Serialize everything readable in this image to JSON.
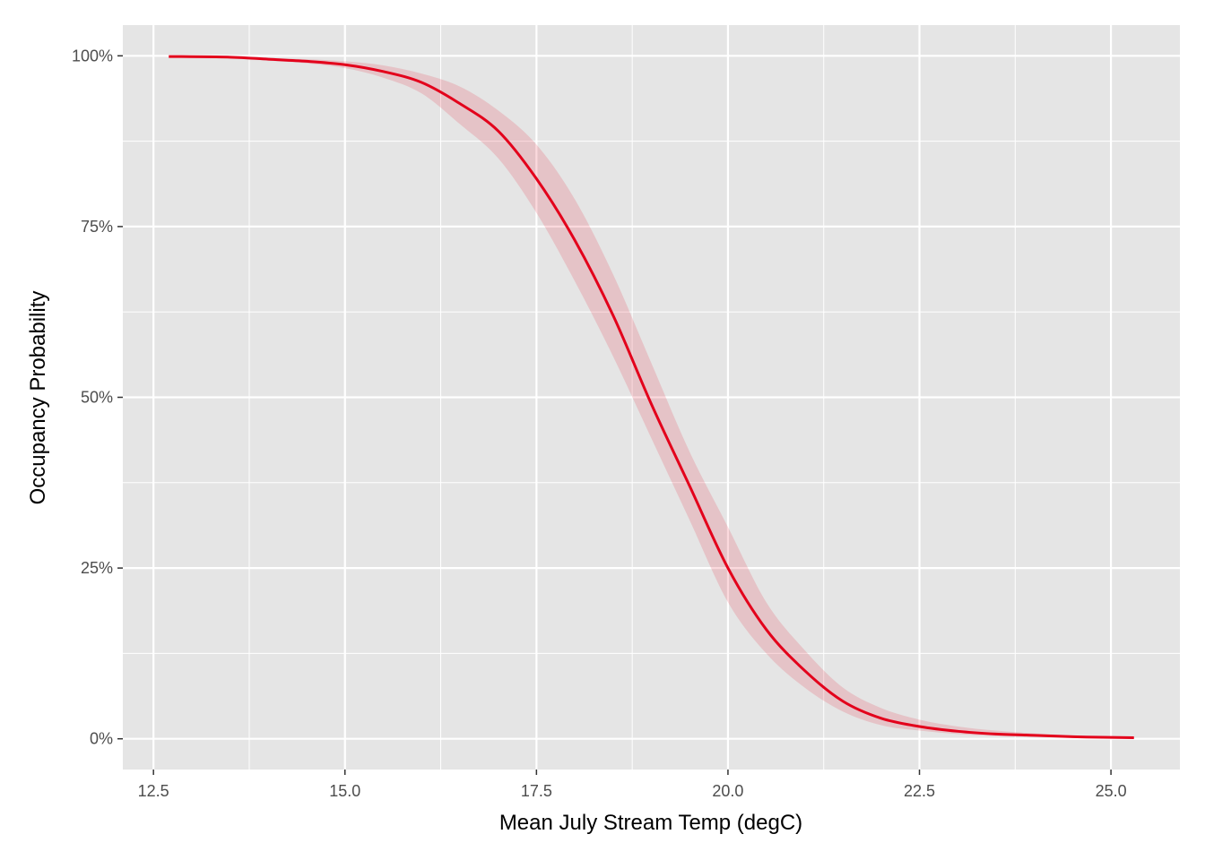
{
  "chart_data": {
    "type": "line",
    "title": "",
    "xlabel": "Mean July Stream Temp (degC)",
    "ylabel": "Occupancy Probability",
    "xlim": [
      12.1,
      25.9
    ],
    "ylim": [
      -0.045,
      1.045
    ],
    "x_ticks": [
      12.5,
      15.0,
      17.5,
      20.0,
      22.5,
      25.0
    ],
    "x_tick_labels": [
      "12.5",
      "15.0",
      "17.5",
      "20.0",
      "22.5",
      "25.0"
    ],
    "y_ticks": [
      0,
      0.25,
      0.5,
      0.75,
      1.0
    ],
    "y_tick_labels": [
      "0%",
      "25%",
      "50%",
      "75%",
      "100%"
    ],
    "grid": true,
    "series": [
      {
        "x": [
          12.7,
          13.5,
          14.0,
          14.5,
          15.0,
          15.5,
          16.0,
          16.5,
          17.0,
          17.5,
          18.0,
          18.5,
          19.0,
          19.5,
          20.0,
          20.5,
          21.0,
          21.5,
          22.0,
          22.5,
          23.0,
          23.5,
          24.0,
          24.5,
          25.0,
          25.3
        ],
        "y": [
          0.999,
          0.998,
          0.995,
          0.992,
          0.987,
          0.977,
          0.961,
          0.93,
          0.89,
          0.82,
          0.73,
          0.62,
          0.49,
          0.37,
          0.25,
          0.16,
          0.1,
          0.055,
          0.03,
          0.018,
          0.011,
          0.007,
          0.005,
          0.003,
          0.002,
          0.0015
        ],
        "lower": [
          0.999,
          0.997,
          0.993,
          0.989,
          0.982,
          0.968,
          0.945,
          0.9,
          0.85,
          0.77,
          0.67,
          0.56,
          0.44,
          0.32,
          0.2,
          0.125,
          0.075,
          0.04,
          0.02,
          0.012,
          0.007,
          0.004,
          0.003,
          0.002,
          0.001,
          0.001
        ],
        "upper": [
          1.0,
          0.999,
          0.997,
          0.995,
          0.992,
          0.986,
          0.974,
          0.955,
          0.92,
          0.87,
          0.79,
          0.68,
          0.55,
          0.42,
          0.31,
          0.2,
          0.13,
          0.075,
          0.045,
          0.028,
          0.018,
          0.012,
          0.008,
          0.005,
          0.003,
          0.002
        ],
        "line_color": "#e3001b",
        "ribbon_color": "#e3001b"
      }
    ],
    "panel_background": "#e5e5e5",
    "grid_color": "#ffffff"
  }
}
